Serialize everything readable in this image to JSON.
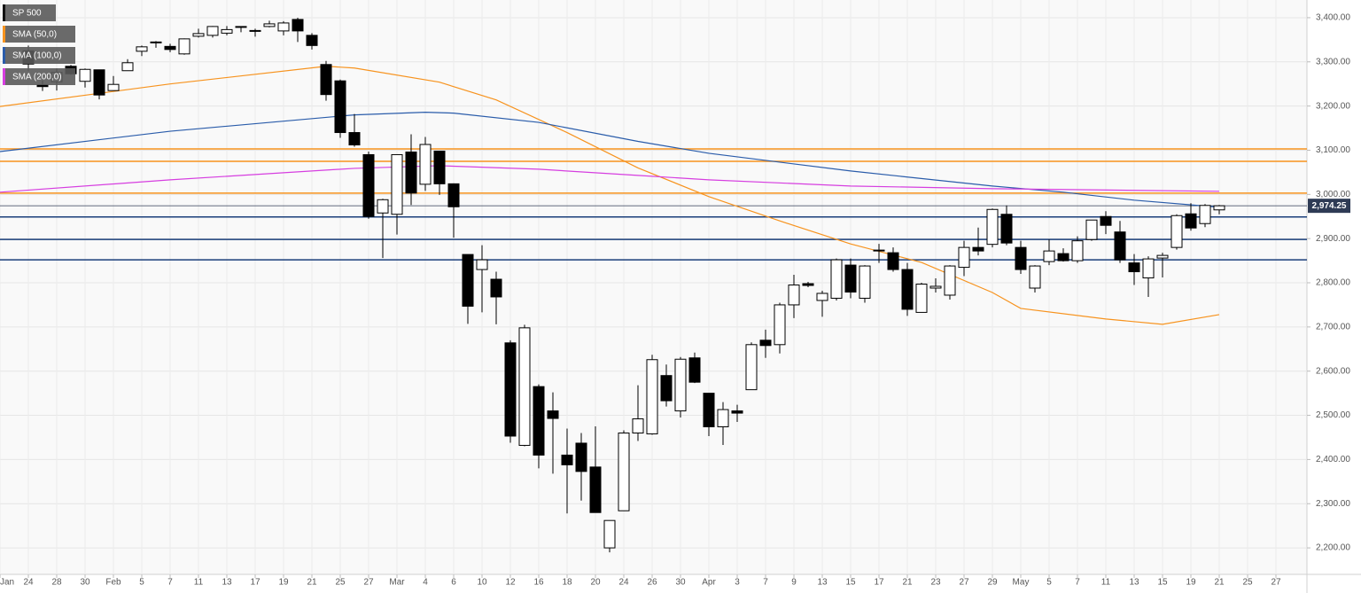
{
  "chart_data": {
    "type": "candlestick",
    "categories": [
      "Jan",
      null,
      "24",
      null,
      "28",
      null,
      "30",
      null,
      "Feb",
      null,
      "5",
      null,
      "7",
      null,
      "11",
      null,
      "13",
      null,
      "17",
      null,
      "19",
      null,
      "21",
      null,
      "25",
      null,
      "27",
      null,
      "Mar",
      null,
      "4",
      null,
      "6",
      null,
      "10",
      null,
      "12",
      null,
      "16",
      null,
      "18",
      null,
      "20",
      null,
      "24",
      null,
      "26",
      null,
      "30",
      null,
      "Apr",
      null,
      "3",
      null,
      "7",
      null,
      "9",
      null,
      "13",
      null,
      "15",
      null,
      "17",
      null,
      "21",
      null,
      "23",
      null,
      "27",
      null,
      "29",
      null,
      "May",
      null,
      "5",
      null,
      "7",
      null,
      "11",
      null,
      "13",
      null,
      "15",
      null,
      "19",
      null,
      "21",
      null,
      "25",
      null,
      "27"
    ],
    "ylim": [
      2140,
      3440
    ],
    "yticks": [
      {
        "value": 2200,
        "label": "2,200.00"
      },
      {
        "value": 2300,
        "label": "2,300.00"
      },
      {
        "value": 2400,
        "label": "2,400.00"
      },
      {
        "value": 2500,
        "label": "2,500.00"
      },
      {
        "value": 2600,
        "label": "2,600.00"
      },
      {
        "value": 2700,
        "label": "2,700.00"
      },
      {
        "value": 2800,
        "label": "2,800.00"
      },
      {
        "value": 2900,
        "label": "2,900.00"
      },
      {
        "value": 3000,
        "label": "3,000.00"
      },
      {
        "value": 3100,
        "label": "3,100.00"
      },
      {
        "value": 3200,
        "label": "3,200.00"
      },
      {
        "value": 3300,
        "label": "3,300.00"
      },
      {
        "value": 3400,
        "label": "3,400.00"
      }
    ],
    "grid": true,
    "series": [
      {
        "name": "SP 500",
        "color": "#000000",
        "open": [
          null,
          null,
          3325,
          3248,
          3255,
          3290,
          3256,
          3282,
          3235,
          3280,
          3324,
          3344,
          3335,
          3318,
          3358,
          3360,
          3365,
          3378,
          3369,
          3380,
          3370,
          3396,
          3360,
          3294,
          3257,
          3140,
          3090,
          2958,
          2955,
          3096,
          3023,
          3098,
          3024,
          2864,
          2830,
          2808,
          2664,
          2432,
          2565,
          2510,
          2410,
          2437,
          2383,
          2200,
          2284,
          2460,
          2458,
          2590,
          2510,
          2630,
          2550,
          2474,
          2510,
          2558,
          2670,
          2660,
          2750,
          2798,
          2760,
          2765,
          2840,
          2765,
          2872,
          2868,
          2830,
          2733,
          2788,
          2772,
          2835,
          2880,
          2887,
          2955,
          2880,
          2788,
          2848,
          2866,
          2850,
          2898,
          2950,
          2915,
          2845,
          2811,
          2856,
          2880,
          2956,
          2934,
          2965,
          null,
          null,
          null,
          null
        ],
        "high": [
          null,
          null,
          3337,
          3258,
          3285,
          3293,
          3285,
          3282,
          3268,
          3306,
          3337,
          3347,
          3341,
          3353,
          3375,
          3381,
          3381,
          3380,
          3375,
          3393,
          3392,
          3400,
          3365,
          3302,
          3260,
          3182,
          3097,
          2990,
          3090,
          3136,
          3130,
          3098,
          3025,
          2864,
          2885,
          2825,
          2670,
          2705,
          2570,
          2552,
          2470,
          2460,
          2475,
          2262,
          2466,
          2568,
          2637,
          2615,
          2632,
          2642,
          2550,
          2530,
          2524,
          2665,
          2694,
          2755,
          2818,
          2802,
          2782,
          2855,
          2855,
          2840,
          2888,
          2880,
          2845,
          2800,
          2810,
          2840,
          2895,
          2925,
          2968,
          2975,
          2895,
          2840,
          2898,
          2878,
          2905,
          2942,
          2962,
          2940,
          2865,
          2860,
          2868,
          2955,
          2980,
          2978,
          2976,
          null,
          null,
          null,
          null
        ],
        "low": [
          null,
          null,
          3280,
          3234,
          3235,
          3271,
          3242,
          3215,
          3235,
          3280,
          3313,
          3332,
          3322,
          3316,
          3355,
          3355,
          3360,
          3367,
          3357,
          3378,
          3360,
          3345,
          3328,
          3212,
          3128,
          3108,
          2945,
          2856,
          2909,
          2976,
          3008,
          2999,
          2902,
          2707,
          2733,
          2706,
          2438,
          2430,
          2380,
          2368,
          2278,
          2307,
          2280,
          2190,
          2284,
          2442,
          2456,
          2520,
          2495,
          2573,
          2453,
          2433,
          2485,
          2558,
          2630,
          2640,
          2720,
          2790,
          2723,
          2760,
          2765,
          2755,
          2845,
          2825,
          2725,
          2733,
          2778,
          2762,
          2815,
          2862,
          2880,
          2885,
          2820,
          2778,
          2840,
          2848,
          2845,
          2895,
          2910,
          2845,
          2795,
          2768,
          2812,
          2875,
          2918,
          2926,
          2955,
          null,
          null,
          null,
          null
        ],
        "close": [
          null,
          null,
          3295,
          3244,
          3276,
          3273,
          3283,
          3225,
          3249,
          3298,
          3334,
          3345,
          3328,
          3352,
          3364,
          3380,
          3373,
          3380,
          3371,
          3386,
          3388,
          3370,
          3337,
          3226,
          3140,
          3112,
          2950,
          2988,
          3090,
          3003,
          3113,
          3024,
          2972,
          2747,
          2852,
          2768,
          2453,
          2698,
          2410,
          2493,
          2388,
          2373,
          2280,
          2262,
          2460,
          2492,
          2626,
          2533,
          2627,
          2575,
          2474,
          2513,
          2505,
          2660,
          2658,
          2750,
          2795,
          2794,
          2776,
          2852,
          2779,
          2838,
          2874,
          2830,
          2740,
          2797,
          2792,
          2838,
          2880,
          2872,
          2966,
          2890,
          2830,
          2838,
          2872,
          2850,
          2895,
          2942,
          2930,
          2852,
          2825,
          2854,
          2862,
          2952,
          2924,
          2975,
          2974.25,
          null,
          null,
          null,
          null
        ]
      },
      {
        "name": "SMA (50,0)",
        "color": "#f7931e",
        "x": [
          0,
          12,
          23,
          25,
          31,
          35,
          40,
          45,
          50,
          55,
          60,
          65,
          70,
          72,
          78,
          82,
          86
        ],
        "values": [
          3199,
          3250,
          3290,
          3286,
          3254,
          3214,
          3140,
          3060,
          2995,
          2940,
          2888,
          2846,
          2778,
          2742,
          2718,
          2706,
          2728
        ]
      },
      {
        "name": "SMA (100,0)",
        "color": "#2a5caa",
        "x": [
          0,
          12,
          25,
          30,
          32,
          38,
          45,
          50,
          60,
          70,
          75,
          80,
          86
        ],
        "values": [
          3097,
          3143,
          3180,
          3186,
          3184,
          3163,
          3120,
          3093,
          3053,
          3019,
          3005,
          2987,
          2971
        ]
      },
      {
        "name": "SMA (200,0)",
        "color": "#d63ee0",
        "x": [
          0,
          12,
          25,
          31,
          38,
          45,
          50,
          60,
          70,
          86
        ],
        "values": [
          3005,
          3033,
          3059,
          3065,
          3057,
          3043,
          3033,
          3019,
          3013,
          3007
        ]
      }
    ],
    "levels": [
      {
        "value": 3103,
        "color": "#f7931e"
      },
      {
        "value": 3075,
        "color": "#f7931e"
      },
      {
        "value": 3003,
        "color": "#f7931e"
      },
      {
        "value": 2949,
        "color": "#1a3e7a"
      },
      {
        "value": 2898,
        "color": "#1a3e7a"
      },
      {
        "value": 2852,
        "color": "#1a3e7a"
      }
    ],
    "last_price": {
      "value": 2974.25,
      "label": "2,974.25",
      "color": "#2e3b55"
    }
  }
}
